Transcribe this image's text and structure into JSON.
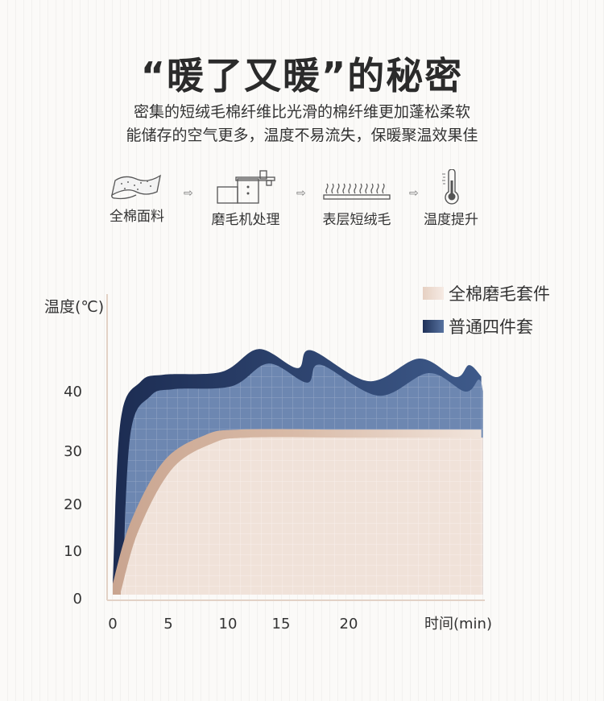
{
  "header": {
    "title": "“暖了又暖”的秘密",
    "subtitle_lines": [
      "密集的短绒毛棉纤维比光滑的棉纤维更加蓬松柔软",
      "能储存的空气更多，温度不易流失，保暖聚温效果佳"
    ]
  },
  "process": {
    "steps": [
      {
        "label": "全棉面料",
        "icon": "fabric-icon"
      },
      {
        "label": "磨毛机处理",
        "icon": "brushing-machine-icon"
      },
      {
        "label": "表层短绒毛",
        "icon": "short-fleece-icon"
      },
      {
        "label": "温度提升",
        "icon": "thermometer-icon"
      }
    ],
    "arrow_icon": "arrow-right-icon"
  },
  "chart_data": {
    "type": "area",
    "title": "",
    "xlabel": "时间(min)",
    "ylabel": "温度(℃)",
    "x_ticks": [
      "0",
      "5",
      "10",
      "15",
      "20"
    ],
    "y_ticks": [
      "0",
      "10",
      "20",
      "30",
      "40"
    ],
    "xlim": [
      0,
      30
    ],
    "ylim": [
      0,
      48
    ],
    "grid": false,
    "legend_position": "top-right",
    "series": [
      {
        "name": "普通四件套",
        "color": "#4a6591",
        "x": [
          0,
          0.7,
          2.5,
          4.6,
          9.5,
          12.9,
          16.2,
          17.2,
          21.5,
          25.2,
          27.9,
          28.9,
          29.8
        ],
        "values": [
          3,
          34.9,
          41.5,
          42.7,
          43.2,
          47.0,
          43.8,
          46.8,
          41.6,
          45.4,
          42.3,
          44.3,
          42.4
        ]
      },
      {
        "name": "全棉磨毛套件",
        "color": "#ecd9cd",
        "x": [
          0,
          1.6,
          4.6,
          8.0,
          11.1,
          20,
          29.8
        ],
        "values": [
          3,
          16,
          28,
          32.5,
          33.5,
          33.5,
          33.5
        ]
      }
    ]
  }
}
